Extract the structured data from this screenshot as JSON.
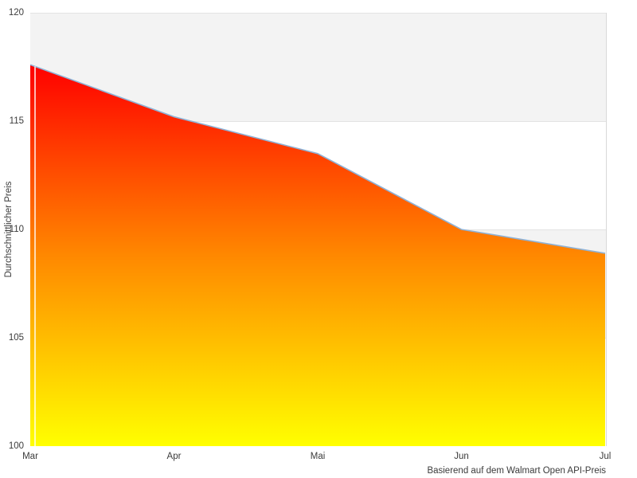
{
  "chart_data": {
    "type": "area",
    "title": "",
    "categories": [
      "Mar",
      "Apr",
      "Mai",
      "Jun",
      "Jul"
    ],
    "values": [
      117.6,
      115.2,
      113.5,
      110.0,
      108.9
    ],
    "series_name": "Durchschnittlicher Preis",
    "xlabel": "",
    "ylabel": "Durchschnittlicher Preis",
    "caption": "Basierend auf dem Walmart Open API-Preis",
    "ylim": [
      100,
      120
    ],
    "yticks": [
      100,
      105,
      110,
      115,
      120
    ],
    "ytick_labels": [
      "100",
      "105",
      "110",
      "115",
      "120"
    ],
    "grid": "alternating horizontal bands, no vertical gridlines",
    "legend_position": "none",
    "colors": {
      "area_gradient_top": "#ff0000",
      "area_gradient_mid": "#ff8800",
      "area_gradient_bottom": "#ffff00",
      "line": "#8fb2d6",
      "band_fill": "#f3f3f3",
      "band_edge_line": "#e3e3e3",
      "plot_right_border": "#d9d9d9",
      "text": "#3b3b3b",
      "background": "#ffffff"
    }
  }
}
